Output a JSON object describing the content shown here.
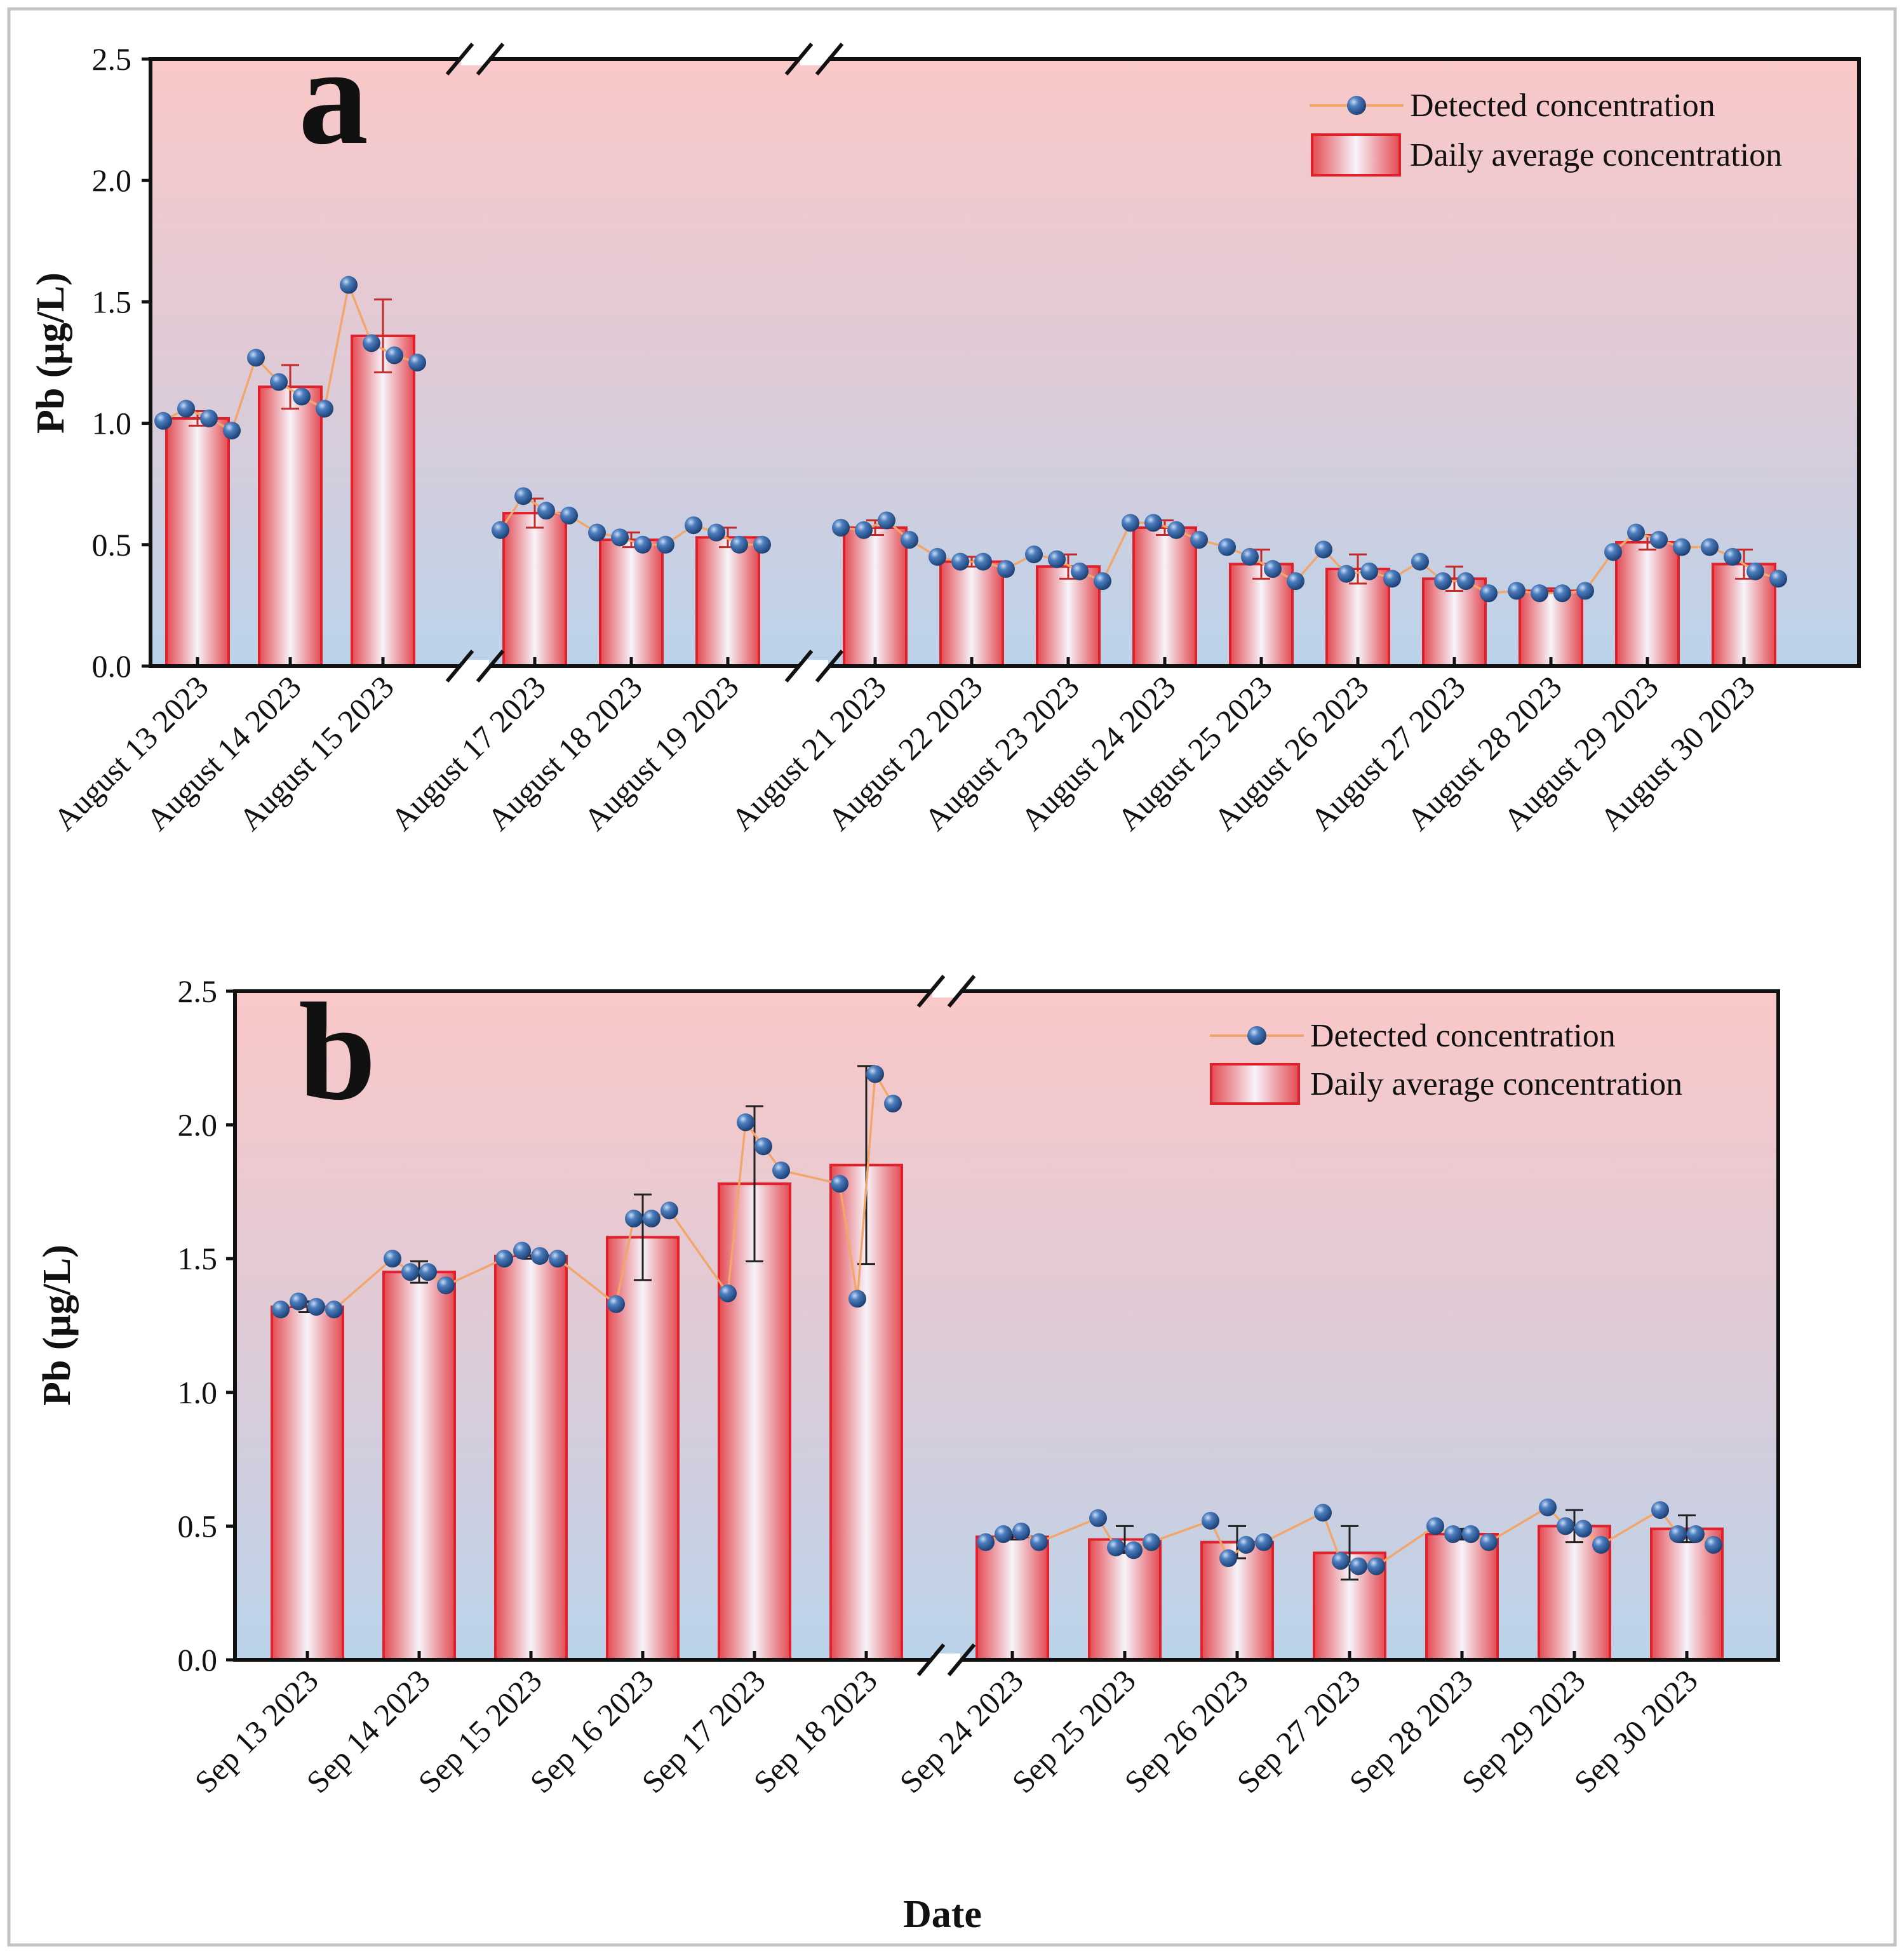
{
  "figure": {
    "xlabel": "Date",
    "ylabel": "Pb (μg/L)"
  },
  "colors": {
    "bg_top": "#fac8c8",
    "bg_bottom": "#bdd3ea",
    "bar_edge": "#e0202a",
    "bar_center": "#f4f4fa",
    "bar_side": "#e85a60",
    "marker": "#2d5c99",
    "line": "#f2a66a",
    "error": "#b22020"
  },
  "chart_data": [
    {
      "id": "a",
      "type": "bar",
      "panel_label": "a",
      "ylabel": "Pb (μg/L)",
      "ylim": [
        0,
        2.5
      ],
      "yticks": [
        "0.0",
        "0.5",
        "1.0",
        "1.5",
        "2.0",
        "2.5"
      ],
      "ytick_values": [
        0,
        0.5,
        1.0,
        1.5,
        2.0,
        2.5
      ],
      "legend": {
        "line_label": "Detected concentration",
        "bar_label": "Daily average concentration",
        "placement": "top-right"
      },
      "segments": [
        {
          "categories": [
            "August 13 2023",
            "August 14 2023",
            "August 15 2023"
          ],
          "averages": [
            1.02,
            1.15,
            1.36
          ],
          "errors": [
            0.03,
            0.09,
            0.15
          ],
          "detected": [
            [
              1.01,
              1.06,
              1.02,
              0.97
            ],
            [
              1.27,
              1.17,
              1.11,
              1.06
            ],
            [
              1.57,
              1.33,
              1.28,
              1.25
            ]
          ]
        },
        {
          "categories": [
            "August 17 2023",
            "August 18 2023",
            "August 19 2023"
          ],
          "averages": [
            0.63,
            0.52,
            0.53
          ],
          "errors": [
            0.06,
            0.03,
            0.04
          ],
          "detected": [
            [
              0.56,
              0.7,
              0.64,
              0.62
            ],
            [
              0.55,
              0.53,
              0.5,
              0.5
            ],
            [
              0.58,
              0.55,
              0.5,
              0.5
            ]
          ]
        },
        {
          "categories": [
            "August 21 2023",
            "August 22 2023",
            "August 23 2023",
            "August 24 2023",
            "August 25 2023",
            "August 26 2023",
            "August 27 2023",
            "August 28 2023",
            "August 29 2023",
            "August 30 2023"
          ],
          "averages": [
            0.57,
            0.43,
            0.41,
            0.57,
            0.42,
            0.4,
            0.36,
            0.31,
            0.51,
            0.42
          ],
          "errors": [
            0.03,
            0.02,
            0.05,
            0.03,
            0.06,
            0.06,
            0.05,
            0.01,
            0.03,
            0.06
          ],
          "detected": [
            [
              0.57,
              0.56,
              0.6,
              0.52
            ],
            [
              0.45,
              0.43,
              0.43,
              0.4
            ],
            [
              0.46,
              0.44,
              0.39,
              0.35
            ],
            [
              0.59,
              0.59,
              0.56,
              0.52
            ],
            [
              0.49,
              0.45,
              0.4,
              0.35
            ],
            [
              0.48,
              0.38,
              0.39,
              0.36
            ],
            [
              0.43,
              0.35,
              0.35,
              0.3
            ],
            [
              0.31,
              0.3,
              0.3,
              0.31
            ],
            [
              0.47,
              0.55,
              0.52,
              0.49
            ],
            [
              0.49,
              0.45,
              0.39,
              0.36
            ]
          ]
        }
      ]
    },
    {
      "id": "b",
      "type": "bar",
      "panel_label": "b",
      "ylabel": "Pb (μg/L)",
      "ylim": [
        0,
        2.5
      ],
      "yticks": [
        "0.0",
        "0.5",
        "1.0",
        "1.5",
        "2.0",
        "2.5"
      ],
      "ytick_values": [
        0,
        0.5,
        1.0,
        1.5,
        2.0,
        2.5
      ],
      "legend": {
        "line_label": "Detected concentration",
        "bar_label": "Daily average concentration",
        "placement": "top-right"
      },
      "segments": [
        {
          "categories": [
            "Sep 13 2023",
            "Sep 14 2023",
            "Sep 15 2023",
            "Sep 16 2023",
            "Sep 17 2023",
            "Sep 18 2023"
          ],
          "averages": [
            1.32,
            1.45,
            1.51,
            1.58,
            1.78,
            1.85
          ],
          "errors": [
            0.02,
            0.04,
            0.01,
            0.16,
            0.29,
            0.37
          ],
          "detected": [
            [
              1.31,
              1.34,
              1.32,
              1.31
            ],
            [
              1.5,
              1.45,
              1.45,
              1.4
            ],
            [
              1.5,
              1.53,
              1.51,
              1.5
            ],
            [
              1.33,
              1.65,
              1.65,
              1.68
            ],
            [
              1.37,
              2.01,
              1.92,
              1.83
            ],
            [
              1.78,
              1.35,
              2.19,
              2.08
            ]
          ]
        },
        {
          "categories": [
            "Sep 24 2023",
            "Sep 25 2023",
            "Sep 26 2023",
            "Sep 27 2023",
            "Sep 28 2023",
            "Sep 29 2023",
            "Sep 30 2023"
          ],
          "averages": [
            0.46,
            0.45,
            0.44,
            0.4,
            0.47,
            0.5,
            0.49
          ],
          "errors": [
            0.01,
            0.05,
            0.06,
            0.1,
            0.02,
            0.06,
            0.05
          ],
          "detected": [
            [
              0.44,
              0.47,
              0.48,
              0.44
            ],
            [
              0.53,
              0.42,
              0.41,
              0.44
            ],
            [
              0.52,
              0.38,
              0.43,
              0.44
            ],
            [
              0.55,
              0.37,
              0.35,
              0.35
            ],
            [
              0.5,
              0.47,
              0.47,
              0.44
            ],
            [
              0.57,
              0.5,
              0.49,
              0.43
            ],
            [
              0.56,
              0.47,
              0.47,
              0.43
            ]
          ]
        }
      ]
    }
  ]
}
